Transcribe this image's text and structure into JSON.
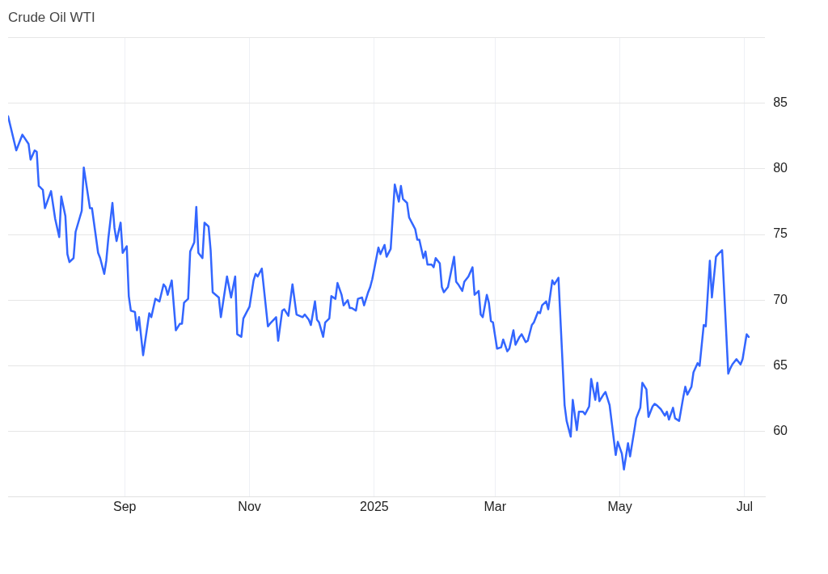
{
  "chart_data": {
    "type": "line",
    "title": "Crude Oil WTI",
    "x": [
      "2024-07-06",
      "2024-07-10",
      "2024-07-13",
      "2024-07-16",
      "2024-07-17",
      "2024-07-19",
      "2024-07-20",
      "2024-07-21",
      "2024-07-23",
      "2024-07-24",
      "2024-07-27",
      "2024-07-29",
      "2024-07-31",
      "2024-08-01",
      "2024-08-03",
      "2024-08-04",
      "2024-08-05",
      "2024-08-07",
      "2024-08-08",
      "2024-08-11",
      "2024-08-12",
      "2024-08-15",
      "2024-08-16",
      "2024-08-19",
      "2024-08-20",
      "2024-08-22",
      "2024-08-23",
      "2024-08-24",
      "2024-08-26",
      "2024-08-27",
      "2024-08-28",
      "2024-08-30",
      "2024-08-31",
      "2024-09-02",
      "2024-09-03",
      "2024-09-04",
      "2024-09-06",
      "2024-09-07",
      "2024-09-08",
      "2024-09-10",
      "2024-09-13",
      "2024-09-14",
      "2024-09-16",
      "2024-09-18",
      "2024-09-20",
      "2024-09-21",
      "2024-09-22",
      "2024-09-24",
      "2024-09-26",
      "2024-09-28",
      "2024-09-29",
      "2024-09-30",
      "2024-10-02",
      "2024-10-03",
      "2024-10-05",
      "2024-10-06",
      "2024-10-07",
      "2024-10-09",
      "2024-10-10",
      "2024-10-12",
      "2024-10-13",
      "2024-10-14",
      "2024-10-17",
      "2024-10-18",
      "2024-10-21",
      "2024-10-23",
      "2024-10-25",
      "2024-10-26",
      "2024-10-28",
      "2024-10-29",
      "2024-10-31",
      "2024-11-01",
      "2024-11-03",
      "2024-11-04",
      "2024-11-05",
      "2024-11-07",
      "2024-11-10",
      "2024-11-11",
      "2024-11-14",
      "2024-11-15",
      "2024-11-17",
      "2024-11-18",
      "2024-11-20",
      "2024-11-22",
      "2024-11-24",
      "2024-11-27",
      "2024-11-28",
      "2024-11-30",
      "2024-12-01",
      "2024-12-03",
      "2024-12-04",
      "2024-12-05",
      "2024-12-07",
      "2024-12-08",
      "2024-12-10",
      "2024-12-11",
      "2024-12-13",
      "2024-12-14",
      "2024-12-16",
      "2024-12-17",
      "2024-12-19",
      "2024-12-20",
      "2024-12-21",
      "2024-12-23",
      "2024-12-24",
      "2024-12-26",
      "2024-12-27",
      "2024-12-29",
      "2024-12-30",
      "2024-12-31",
      "2025-01-02",
      "2025-01-03",
      "2025-01-04",
      "2025-01-06",
      "2025-01-07",
      "2025-01-09",
      "2025-01-11",
      "2025-01-13",
      "2025-01-14",
      "2025-01-15",
      "2025-01-17",
      "2025-01-18",
      "2025-01-20",
      "2025-01-21",
      "2025-01-22",
      "2025-01-23",
      "2025-01-25",
      "2025-01-26",
      "2025-01-27",
      "2025-01-29",
      "2025-01-30",
      "2025-01-31",
      "2025-02-02",
      "2025-02-03",
      "2025-02-04",
      "2025-02-06",
      "2025-02-09",
      "2025-02-10",
      "2025-02-11",
      "2025-02-13",
      "2025-02-14",
      "2025-02-16",
      "2025-02-18",
      "2025-02-19",
      "2025-02-21",
      "2025-02-22",
      "2025-02-23",
      "2025-02-25",
      "2025-02-26",
      "2025-02-27",
      "2025-02-28",
      "2025-03-02",
      "2025-03-04",
      "2025-03-05",
      "2025-03-07",
      "2025-03-08",
      "2025-03-10",
      "2025-03-11",
      "2025-03-13",
      "2025-03-14",
      "2025-03-16",
      "2025-03-17",
      "2025-03-19",
      "2025-03-20",
      "2025-03-22",
      "2025-03-23",
      "2025-03-24",
      "2025-03-26",
      "2025-03-27",
      "2025-03-29",
      "2025-03-30",
      "2025-04-01",
      "2025-04-04",
      "2025-04-05",
      "2025-04-07",
      "2025-04-08",
      "2025-04-10",
      "2025-04-11",
      "2025-04-13",
      "2025-04-14",
      "2025-04-16",
      "2025-04-17",
      "2025-04-19",
      "2025-04-20",
      "2025-04-21",
      "2025-04-23",
      "2025-04-24",
      "2025-04-26",
      "2025-04-29",
      "2025-04-30",
      "2025-05-02",
      "2025-05-03",
      "2025-05-05",
      "2025-05-06",
      "2025-05-08",
      "2025-05-09",
      "2025-05-11",
      "2025-05-12",
      "2025-05-14",
      "2025-05-15",
      "2025-05-17",
      "2025-05-18",
      "2025-05-19",
      "2025-05-21",
      "2025-05-23",
      "2025-05-24",
      "2025-05-25",
      "2025-05-27",
      "2025-05-28",
      "2025-05-30",
      "2025-06-01",
      "2025-06-02",
      "2025-06-03",
      "2025-06-05",
      "2025-06-06",
      "2025-06-08",
      "2025-06-09",
      "2025-06-11",
      "2025-06-12",
      "2025-06-14",
      "2025-06-15",
      "2025-06-17",
      "2025-06-18",
      "2025-06-20",
      "2025-06-23",
      "2025-06-24",
      "2025-06-25",
      "2025-06-27",
      "2025-06-29",
      "2025-06-30",
      "2025-07-02",
      "2025-07-03"
    ],
    "series": [
      {
        "color": "#3366ff",
        "values": [
          84.0,
          81.4,
          82.6,
          81.9,
          80.7,
          81.4,
          81.3,
          78.7,
          78.4,
          77.0,
          78.3,
          76.2,
          74.8,
          77.9,
          76.4,
          73.5,
          72.9,
          73.2,
          75.2,
          76.8,
          80.1,
          77.0,
          77.0,
          73.6,
          73.2,
          72.0,
          73.0,
          74.7,
          77.4,
          75.5,
          74.5,
          75.9,
          73.6,
          74.1,
          70.3,
          69.2,
          69.1,
          67.7,
          68.7,
          65.8,
          69.0,
          68.7,
          70.1,
          69.9,
          71.2,
          71.0,
          70.4,
          71.5,
          67.7,
          68.2,
          68.2,
          69.8,
          70.1,
          73.7,
          74.4,
          77.1,
          73.6,
          73.2,
          75.9,
          75.6,
          73.8,
          70.6,
          70.2,
          68.7,
          71.8,
          70.2,
          71.8,
          67.4,
          67.2,
          68.6,
          69.2,
          69.5,
          71.5,
          72.0,
          71.8,
          72.4,
          68.0,
          68.2,
          68.7,
          66.9,
          69.2,
          69.3,
          68.8,
          71.2,
          68.9,
          68.7,
          68.9,
          68.5,
          68.1,
          69.9,
          68.5,
          68.3,
          67.2,
          68.3,
          68.6,
          70.3,
          70.1,
          71.3,
          70.4,
          69.6,
          70.0,
          69.4,
          69.4,
          69.2,
          70.1,
          70.2,
          69.6,
          70.6,
          71.0,
          71.6,
          73.2,
          74.0,
          73.5,
          74.2,
          73.3,
          73.9,
          78.8,
          77.5,
          78.7,
          77.7,
          77.4,
          76.3,
          75.7,
          75.4,
          74.6,
          74.6,
          73.2,
          73.7,
          72.7,
          72.7,
          72.5,
          73.2,
          72.8,
          71.0,
          70.6,
          71.0,
          73.3,
          71.4,
          71.2,
          70.7,
          71.4,
          71.8,
          72.5,
          70.4,
          70.7,
          68.9,
          68.7,
          70.4,
          69.8,
          68.4,
          68.3,
          66.3,
          66.4,
          67.0,
          66.1,
          66.3,
          67.7,
          66.6,
          67.2,
          67.4,
          66.8,
          66.9,
          68.1,
          68.3,
          69.1,
          69.0,
          69.6,
          69.9,
          69.3,
          71.5,
          71.2,
          71.7,
          62.0,
          60.8,
          59.6,
          62.4,
          60.1,
          61.5,
          61.5,
          61.3,
          61.9,
          64.0,
          62.4,
          63.7,
          62.3,
          62.8,
          63.0,
          62.0,
          58.2,
          59.2,
          58.3,
          57.1,
          59.1,
          58.1,
          60.0,
          61.0,
          61.8,
          63.7,
          63.2,
          61.1,
          61.9,
          62.1,
          62.0,
          61.7,
          61.2,
          61.5,
          60.9,
          61.8,
          61.0,
          60.8,
          62.6,
          63.4,
          62.8,
          63.4,
          64.5,
          65.2,
          65.0,
          68.1,
          68.0,
          73.0,
          70.2,
          73.3,
          73.5,
          73.8,
          64.4,
          64.8,
          65.1,
          65.5,
          65.1,
          65.5,
          67.4,
          67.2
        ]
      }
    ],
    "xlim": [
      "2024-07-06",
      "2025-07-11"
    ],
    "xticks": [
      {
        "value": "2024-09-01",
        "label": "Sep"
      },
      {
        "value": "2024-11-01",
        "label": "Nov"
      },
      {
        "value": "2025-01-01",
        "label": "2025"
      },
      {
        "value": "2025-03-01",
        "label": "Mar"
      },
      {
        "value": "2025-05-01",
        "label": "May"
      },
      {
        "value": "2025-07-01",
        "label": "Jul"
      }
    ],
    "ylim": [
      55,
      90
    ],
    "yticks": [
      60,
      65,
      70,
      75,
      80,
      85,
      {
        "value": 90,
        "label": null
      }
    ],
    "grid": true,
    "legend": false,
    "marker": "none",
    "line_style": "solid"
  }
}
